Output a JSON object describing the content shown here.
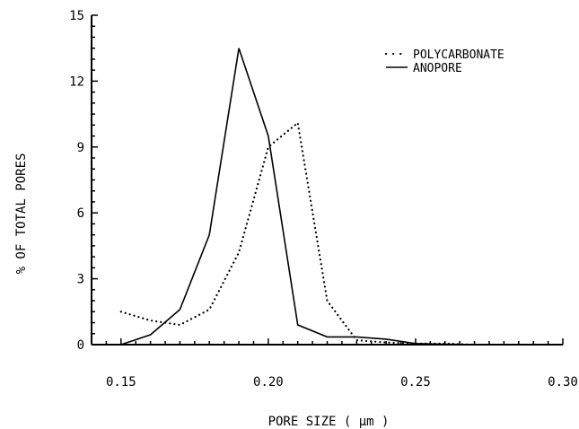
{
  "chart_data": {
    "type": "line",
    "xlabel": "PORE SIZE ( μm )",
    "ylabel": "% OF TOTAL PORES",
    "xlim": [
      0.14,
      0.3
    ],
    "ylim": [
      0,
      15
    ],
    "x_ticks": [
      0.15,
      0.2,
      0.25,
      0.3
    ],
    "x_tick_labels": [
      "0.15",
      "0.20",
      "0.25",
      "0.30"
    ],
    "y_ticks": [
      0,
      3,
      6,
      9,
      12,
      15
    ],
    "y_tick_labels": [
      "0",
      "3",
      "6",
      "9",
      "12",
      "15"
    ],
    "grid": false,
    "legend_position": "top-right",
    "series": [
      {
        "name": "POLYCARBONATE",
        "style": "dotted",
        "x": [
          0.15,
          0.16,
          0.17,
          0.18,
          0.19,
          0.2,
          0.21,
          0.22,
          0.23,
          0.24,
          0.25,
          0.26,
          0.27,
          0.28,
          0.29,
          0.3
        ],
        "y": [
          1.5,
          1.1,
          0.9,
          1.6,
          4.2,
          9.0,
          10.1,
          2.0,
          0.2,
          0.1,
          0.05,
          0.05,
          0.0,
          0.0,
          0.0,
          0.0
        ]
      },
      {
        "name": "ANOPORE",
        "style": "solid",
        "x": [
          0.14,
          0.15,
          0.16,
          0.17,
          0.18,
          0.19,
          0.2,
          0.21,
          0.22,
          0.23,
          0.24,
          0.25,
          0.26,
          0.27,
          0.28,
          0.29,
          0.3
        ],
        "y": [
          0.0,
          0.0,
          0.45,
          1.6,
          5.0,
          13.5,
          9.5,
          0.9,
          0.35,
          0.35,
          0.25,
          0.05,
          0.02,
          0.0,
          0.0,
          0.0,
          0.0
        ]
      }
    ]
  }
}
